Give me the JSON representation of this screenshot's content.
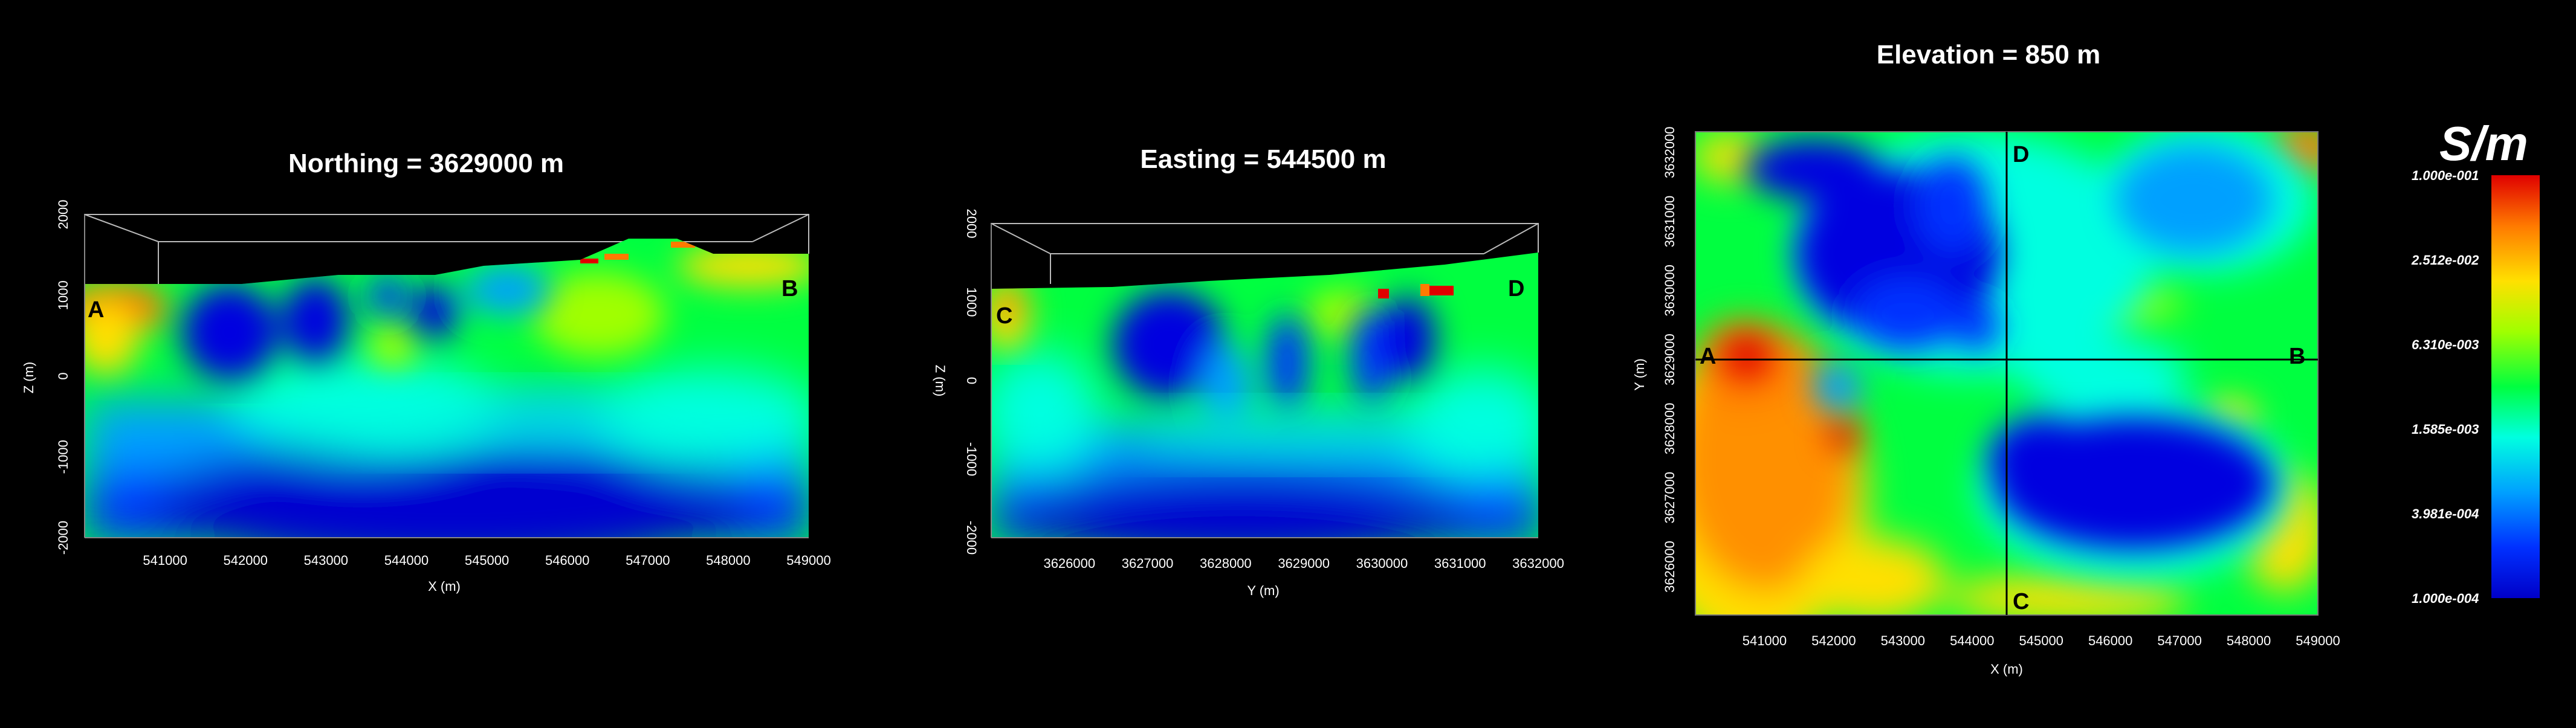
{
  "chart_data": [
    {
      "type": "heatmap",
      "title": "Northing = 3629000 m",
      "xlabel": "X (m)",
      "ylabel": "Z (m)",
      "xlim": [
        540000,
        549000
      ],
      "ylim": [
        -2000,
        2000
      ],
      "x_ticks": [
        "541000",
        "542000",
        "543000",
        "544000",
        "545000",
        "546000",
        "547000",
        "548000",
        "549000"
      ],
      "y_ticks": [
        "2000",
        "1000",
        "0",
        "-1000",
        "-2000"
      ],
      "markers": [
        {
          "label": "A",
          "x": 540200,
          "z": 850
        },
        {
          "label": "B",
          "x": 548600,
          "z": 1050
        }
      ],
      "features": [
        {
          "type": "conductive",
          "x": 540800,
          "z": 900,
          "value": 0.1
        },
        {
          "type": "resistive",
          "x": 541900,
          "z": 600,
          "value": 0.0001
        },
        {
          "type": "resistive",
          "x": 542900,
          "z": 700,
          "value": 0.0001
        },
        {
          "type": "resistive",
          "x": 544300,
          "z": 800,
          "value": 0.0001
        },
        {
          "type": "resistive",
          "x": 545000,
          "z": -1800,
          "value": 0.0001
        },
        {
          "type": "moderate",
          "x": 545600,
          "z": 700,
          "value": 0.0063
        },
        {
          "type": "conductive",
          "x": 547800,
          "z": 1400,
          "value": 0.1
        }
      ]
    },
    {
      "type": "heatmap",
      "title": "Easting = 544500 m",
      "xlabel": "Y (m)",
      "ylabel": "Z (m)",
      "xlim": [
        3625000,
        3632000
      ],
      "ylim": [
        -2000,
        2000
      ],
      "x_ticks": [
        "3626000",
        "3627000",
        "3628000",
        "3629000",
        "3630000",
        "3631000",
        "3632000"
      ],
      "y_ticks": [
        "2000",
        "1000",
        "0",
        "-1000",
        "-2000"
      ],
      "markers": [
        {
          "label": "C",
          "y": 3625200,
          "z": 850
        },
        {
          "label": "D",
          "y": 3631700,
          "z": 1100
        }
      ],
      "features": [
        {
          "type": "conductive",
          "y": 3625300,
          "z": 1050,
          "value": 0.1
        },
        {
          "type": "resistive",
          "y": 3627200,
          "z": 500,
          "value": 0.0001
        },
        {
          "type": "resistive",
          "y": 3628500,
          "z": 300,
          "value": 0.0004
        },
        {
          "type": "resistive",
          "y": 3629200,
          "z": 400,
          "value": 0.0004
        },
        {
          "type": "resistive",
          "y": 3630500,
          "z": 500,
          "value": 0.0004
        },
        {
          "type": "conductive",
          "y": 3630100,
          "z": 1150,
          "value": 0.1
        },
        {
          "type": "conductive",
          "y": 3631000,
          "z": 1100,
          "value": 0.1
        },
        {
          "type": "resistive",
          "y": 3628600,
          "z": -1800,
          "value": 0.0001
        }
      ]
    },
    {
      "type": "heatmap",
      "title": "Elevation = 850 m",
      "xlabel": "X (m)",
      "ylabel": "Y (m)",
      "xlim": [
        540000,
        549000
      ],
      "ylim": [
        3625300,
        3632300
      ],
      "x_ticks": [
        "541000",
        "542000",
        "543000",
        "544000",
        "545000",
        "546000",
        "547000",
        "548000",
        "549000"
      ],
      "y_ticks": [
        "3626000",
        "3627000",
        "3628000",
        "3629000",
        "3630000",
        "3631000",
        "3632000"
      ],
      "cross_lines": {
        "x": 544500,
        "y": 3629000
      },
      "markers": [
        {
          "label": "A",
          "x": 540200,
          "y": 3629000
        },
        {
          "label": "B",
          "x": 548700,
          "y": 3629000
        },
        {
          "label": "C",
          "x": 544700,
          "y": 3625500
        },
        {
          "label": "D",
          "x": 544700,
          "y": 3632000
        }
      ],
      "features": [
        {
          "type": "resistive",
          "x": 542500,
          "y": 3630600,
          "value": 0.0001
        },
        {
          "type": "resistive",
          "x": 543500,
          "y": 3630000,
          "value": 0.0001
        },
        {
          "type": "resistive",
          "x": 546000,
          "y": 3627100,
          "value": 0.0001
        },
        {
          "type": "resistive",
          "x": 547500,
          "y": 3631000,
          "value": 0.0004
        },
        {
          "type": "conductive",
          "x": 541000,
          "y": 3627200,
          "value": 0.0251
        },
        {
          "type": "conductive",
          "x": 540700,
          "y": 3628900,
          "value": 0.1
        },
        {
          "type": "conductive",
          "x": 544000,
          "y": 3630400,
          "value": 0.1
        },
        {
          "type": "conductive",
          "x": 548800,
          "y": 3632100,
          "value": 0.1
        },
        {
          "type": "conductive",
          "x": 547200,
          "y": 3628400,
          "value": 0.0251
        }
      ]
    }
  ],
  "colorbar": {
    "unit": "S/m",
    "scale": "log",
    "range": [
      0.0001,
      0.1
    ],
    "ticks": [
      "1.000e-001",
      "2.512e-002",
      "6.310e-003",
      "1.585e-003",
      "3.981e-004",
      "1.000e-004"
    ],
    "colors": [
      "#e00000",
      "#ff7a00",
      "#ffe000",
      "#a0ff00",
      "#00ff40",
      "#00ffe0",
      "#00a0ff",
      "#0030ff",
      "#0000c8"
    ]
  }
}
